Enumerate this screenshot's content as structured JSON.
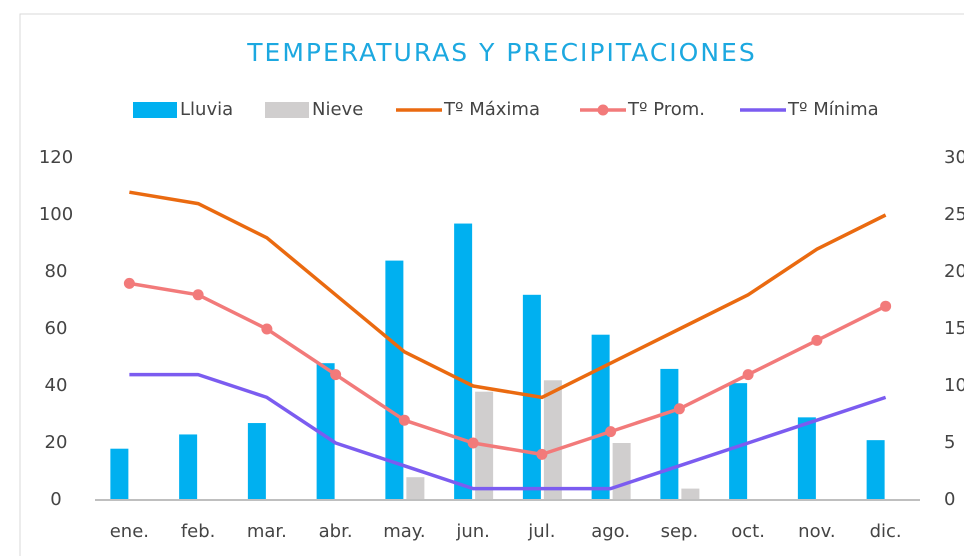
{
  "chart_data": {
    "type": "bar-line",
    "title": "TEMPERATURAS Y PRECIPITACIONES",
    "categories": [
      "ene.",
      "feb.",
      "mar.",
      "abr.",
      "may.",
      "jun.",
      "jul.",
      "ago.",
      "sep.",
      "oct.",
      "nov.",
      "dic."
    ],
    "series": [
      {
        "name": "Lluvia",
        "kind": "bar",
        "color": "#00b0f0",
        "values": [
          18,
          23,
          27,
          48,
          84,
          97,
          72,
          58,
          46,
          41,
          29,
          21
        ]
      },
      {
        "name": "Nieve",
        "kind": "bar",
        "color": "#d0cece",
        "values": [
          0,
          0,
          0,
          0,
          8,
          38,
          42,
          20,
          4,
          0,
          0,
          0
        ]
      },
      {
        "name": "Tº Máxima",
        "kind": "line",
        "axis": "y2",
        "color": "#ea6a10",
        "values": [
          27,
          26,
          23,
          18,
          13,
          10,
          9,
          12,
          15,
          18,
          22,
          25
        ]
      },
      {
        "name": "Tº Prom.",
        "kind": "line",
        "axis": "y2",
        "marker": true,
        "color": "#f27a7a",
        "values": [
          19,
          18,
          15,
          11,
          7,
          5,
          4,
          6,
          8,
          11,
          14,
          17
        ]
      },
      {
        "name": "Tº Mínima",
        "kind": "line",
        "axis": "y2",
        "color": "#7b5cf0",
        "values": [
          11,
          11,
          9,
          5,
          3,
          1,
          1,
          1,
          3,
          5,
          7,
          9
        ]
      }
    ],
    "ylim": [
      0,
      120
    ],
    "yticks": [
      0,
      20,
      40,
      60,
      80,
      100,
      120
    ],
    "y2lim": [
      0,
      30
    ],
    "y2ticks": [
      0,
      5,
      10,
      15,
      20,
      25,
      30
    ],
    "legend": "top"
  }
}
